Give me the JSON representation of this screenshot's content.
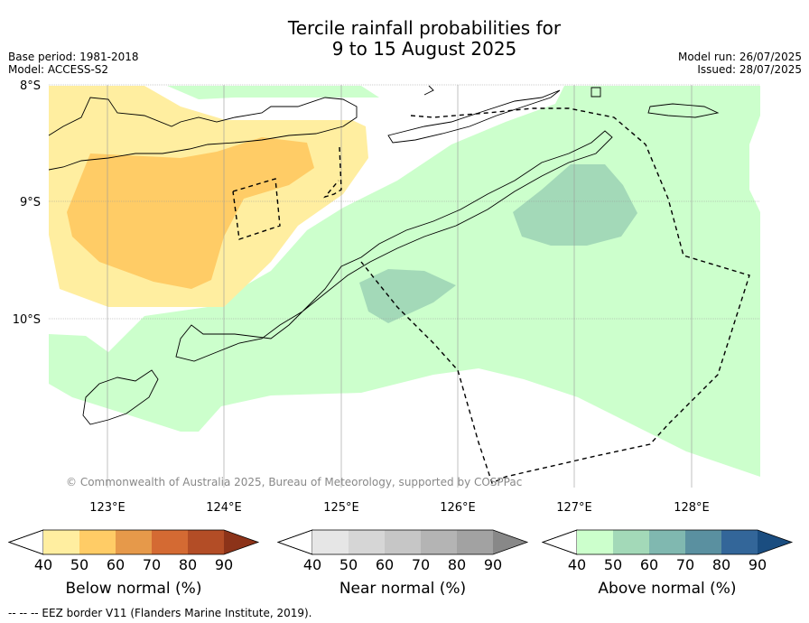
{
  "title": {
    "line1": "Tercile rainfall probabilities for",
    "line2": "9 to 15 August 2025"
  },
  "meta": {
    "base_period": "Base period: 1981-2018",
    "model": "Model: ACCESS-S2",
    "model_run": "Model run: 26/07/2025",
    "issued": "Issued: 28/07/2025"
  },
  "map": {
    "lat_labels": [
      "8°S",
      "9°S",
      "10°S"
    ],
    "lon_labels": [
      "123°E",
      "124°E",
      "125°E",
      "126°E",
      "127°E",
      "128°E"
    ],
    "copyright": "© Commonwealth of Australia 2025, Bureau of Meteorology, supported by COSPPac"
  },
  "colorbars": [
    {
      "label": "Below normal (%)",
      "ticks": [
        "40",
        "50",
        "60",
        "70",
        "80",
        "90"
      ],
      "colors": [
        "#ffeea0",
        "#ffcc66",
        "#e6994a",
        "#d46a33",
        "#b34d26",
        "#8c3319"
      ]
    },
    {
      "label": "Near normal (%)",
      "ticks": [
        "40",
        "50",
        "60",
        "70",
        "80",
        "90"
      ],
      "colors": [
        "#e6e6e6",
        "#d6d6d6",
        "#c6c6c6",
        "#b4b4b4",
        "#a2a2a2",
        "#888888"
      ]
    },
    {
      "label": "Above normal (%)",
      "ticks": [
        "40",
        "50",
        "60",
        "70",
        "80",
        "90"
      ],
      "colors": [
        "#ccffcc",
        "#a3d9b8",
        "#80b8b0",
        "#5a90a0",
        "#336699",
        "#1a4d80"
      ]
    }
  ],
  "footer": "--  --  -- EEZ border V11 (Flanders Marine Institute, 2019)."
}
